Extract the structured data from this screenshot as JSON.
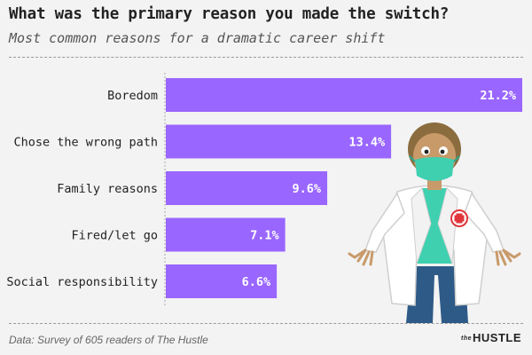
{
  "header": {
    "title": "What was the primary reason you made the switch?",
    "subtitle": "Most common reasons for a dramatic career shift"
  },
  "footer": {
    "source": "Data: Survey of 605 readers of The Hustle",
    "brand_prefix": "the",
    "brand_name": "HUSTLE"
  },
  "colors": {
    "bar": "#9966ff",
    "bar_label": "#ffffff",
    "background": "#f3f3f3",
    "category_text": "#222222"
  },
  "illustration": {
    "name": "doctor-with-mask-illustration"
  },
  "chart_data": {
    "type": "bar",
    "orientation": "horizontal",
    "title": "What was the primary reason you made the switch?",
    "subtitle": "Most common reasons for a dramatic career shift",
    "categories": [
      "Boredom",
      "Chose the wrong path",
      "Family reasons",
      "Fired/let go",
      "Social responsibility"
    ],
    "values": [
      21.2,
      13.4,
      9.6,
      7.1,
      6.6
    ],
    "value_labels": [
      "21.2%",
      "13.4%",
      "9.6%",
      "7.1%",
      "6.6%"
    ],
    "unit": "%",
    "xlim": [
      0,
      21.2
    ],
    "grid": false,
    "legend": "none"
  }
}
